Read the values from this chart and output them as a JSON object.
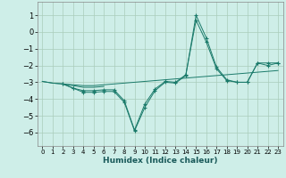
{
  "title": "",
  "xlabel": "Humidex (Indice chaleur)",
  "background_color": "#ceeee8",
  "grid_color": "#aaccbb",
  "line_color": "#1a7a6a",
  "xlim": [
    -0.5,
    23.5
  ],
  "ylim": [
    -6.8,
    1.8
  ],
  "xticks": [
    0,
    1,
    2,
    3,
    4,
    5,
    6,
    7,
    8,
    9,
    10,
    11,
    12,
    13,
    14,
    15,
    16,
    17,
    18,
    19,
    20,
    21,
    22,
    23
  ],
  "yticks": [
    1,
    0,
    -1,
    -2,
    -3,
    -4,
    -5,
    -6
  ],
  "series": [
    {
      "x": [
        2,
        3,
        4,
        5,
        6,
        7,
        8,
        9,
        10,
        11,
        12,
        13,
        14,
        15,
        16,
        17,
        18,
        19,
        20,
        21,
        22,
        23
      ],
      "y": [
        -3.1,
        -3.35,
        -3.6,
        -3.6,
        -3.55,
        -3.55,
        -4.2,
        -5.9,
        -4.5,
        -3.5,
        -3.0,
        -3.05,
        -2.6,
        1.0,
        -0.35,
        -2.1,
        -2.85,
        -3.0,
        -3.0,
        -1.85,
        -1.85,
        -1.85
      ],
      "marker": true
    },
    {
      "x": [
        2,
        3,
        4,
        5,
        6,
        7,
        8,
        9,
        10,
        11,
        12,
        13,
        14,
        15,
        16,
        17,
        18,
        19,
        20,
        21,
        22,
        23
      ],
      "y": [
        -3.1,
        -3.35,
        -3.5,
        -3.5,
        -3.45,
        -3.45,
        -4.1,
        -5.85,
        -4.3,
        -3.4,
        -2.95,
        -3.0,
        -2.55,
        0.7,
        -0.6,
        -2.2,
        -2.9,
        -3.0,
        -3.0,
        -1.85,
        -2.0,
        -1.85
      ],
      "marker": true
    },
    {
      "x": [
        0,
        1,
        2,
        3,
        4,
        5,
        6
      ],
      "y": [
        -2.95,
        -3.05,
        -3.1,
        -3.2,
        -3.3,
        -3.3,
        -3.25
      ],
      "marker": false
    },
    {
      "x": [
        0,
        1,
        2,
        3,
        4,
        5,
        6,
        7,
        8,
        9,
        10,
        11,
        12,
        13,
        14,
        15,
        16,
        17,
        18,
        19,
        20,
        21,
        22,
        23
      ],
      "y": [
        -2.95,
        -3.05,
        -3.1,
        -3.15,
        -3.2,
        -3.2,
        -3.15,
        -3.1,
        -3.05,
        -3.0,
        -2.95,
        -2.9,
        -2.85,
        -2.8,
        -2.75,
        -2.7,
        -2.65,
        -2.6,
        -2.55,
        -2.5,
        -2.45,
        -2.4,
        -2.35,
        -2.3
      ],
      "marker": false
    }
  ]
}
